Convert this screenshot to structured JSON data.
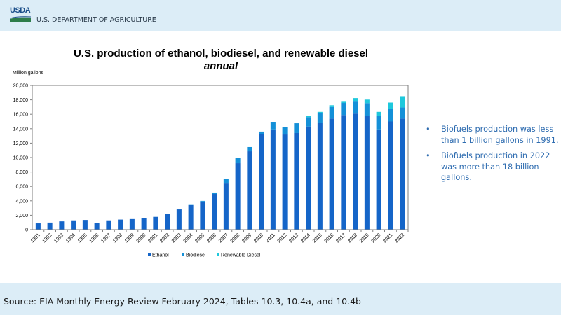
{
  "header": {
    "logo_text": "USDA",
    "department": "U.S. DEPARTMENT OF AGRICULTURE"
  },
  "slide": {
    "bullets": [
      "Biofuels production was less than 1 billion gallons in 1991.",
      "Biofuels production in 2022 was more than 18 billion gallons."
    ],
    "bullet_glyph": "•",
    "source": "Source: EIA Monthly Energy Review February 2024, Tables 10.3, 10.4a, and 10.4b"
  },
  "colors": {
    "ethanol": "#1565c8",
    "biodiesel": "#1490d8",
    "renewable_diesel": "#1ec8dc",
    "bullet_text": "#2e6cb0",
    "band": "#dcedf7"
  },
  "chart_data": {
    "type": "bar",
    "stacked": true,
    "title": "U.S. production of ethanol, biodiesel, and renewable diesel",
    "subtitle": "annual",
    "xlabel": "",
    "ylabel": "Million gallons",
    "ylim": [
      0,
      20000
    ],
    "yticks": [
      0,
      2000,
      4000,
      6000,
      8000,
      10000,
      12000,
      14000,
      16000,
      18000,
      20000
    ],
    "ytick_labels": [
      "0",
      "2,000",
      "4,000",
      "6,000",
      "8,000",
      "10,000",
      "12,000",
      "14,000",
      "16,000",
      "18,000",
      "20,000"
    ],
    "grid": false,
    "legend_position": "bottom",
    "categories": [
      "1991",
      "1992",
      "1993",
      "1994",
      "1995",
      "1996",
      "1997",
      "1998",
      "1999",
      "2000",
      "2001",
      "2002",
      "2003",
      "2004",
      "2005",
      "2006",
      "2007",
      "2008",
      "2009",
      "2010",
      "2011",
      "2012",
      "2013",
      "2014",
      "2015",
      "2016",
      "2017",
      "2018",
      "2019",
      "2020",
      "2021",
      "2022"
    ],
    "series": [
      {
        "name": "Ethanol",
        "color": "#1565c8",
        "values": [
          870,
          980,
          1150,
          1290,
          1350,
          970,
          1290,
          1400,
          1470,
          1620,
          1770,
          2140,
          2810,
          3400,
          3900,
          4950,
          6400,
          9220,
          10870,
          13300,
          13900,
          13200,
          13400,
          14300,
          14800,
          15400,
          15900,
          16100,
          15800,
          13900,
          15000,
          15400
        ]
      },
      {
        "name": "Biodiesel",
        "color": "#1490d8",
        "values": [
          0,
          0,
          0,
          0,
          0,
          0,
          0,
          0,
          0,
          0,
          10,
          10,
          20,
          30,
          90,
          200,
          590,
          780,
          590,
          300,
          1050,
          1060,
          1350,
          1300,
          1380,
          1600,
          1670,
          1750,
          1750,
          1850,
          1750,
          1550
        ]
      },
      {
        "name": "Renewable Diesel",
        "color": "#1ec8dc",
        "values": [
          0,
          0,
          0,
          0,
          0,
          0,
          0,
          0,
          0,
          0,
          0,
          0,
          0,
          0,
          0,
          0,
          0,
          0,
          0,
          0,
          0,
          0,
          0,
          130,
          150,
          250,
          260,
          390,
          480,
          580,
          870,
          1550
        ]
      }
    ]
  }
}
